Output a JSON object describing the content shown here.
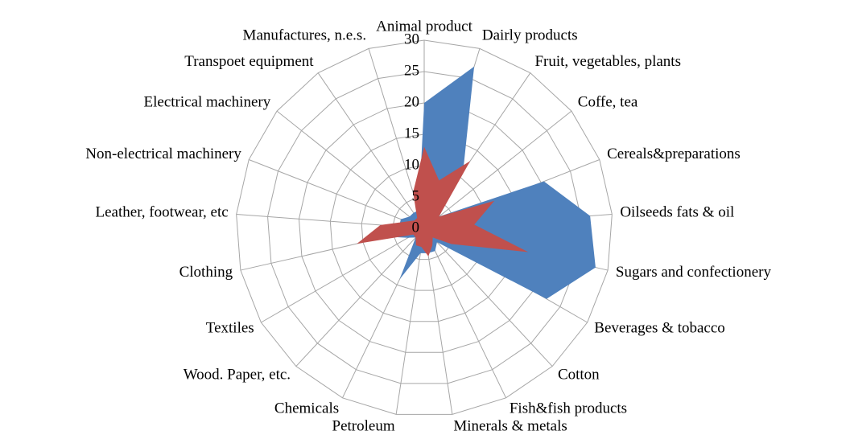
{
  "chart_data": {
    "type": "radar",
    "categories": [
      "Animal product",
      "Dairly products",
      "Fruit, vegetables, plants",
      "Coffe, tea",
      "Cereals&preparations",
      "Oilseeds fats & oil",
      "Sugars and confectionery",
      "Beverages & tobacco",
      "Cotton",
      "Fish&fish products",
      "Minerals & metals",
      "Petroleum",
      "Chemicals",
      "Wood. Paper, etc.",
      "Textiles",
      "Clothing",
      "Leather, footwear, etc",
      "Non-electrical machinery",
      "Electrical machinery",
      "Transpoet equipment",
      "Manufactures, n.e.s."
    ],
    "series": [
      {
        "color": "#4f81bd",
        "values": [
          20,
          27,
          11,
          3,
          20.5,
          26.5,
          28,
          22.5,
          3,
          4,
          4,
          4,
          9,
          2,
          3,
          6,
          4,
          4,
          3,
          3,
          3
        ]
      },
      {
        "color": "#c0504d",
        "values": [
          13,
          8,
          13,
          3,
          12,
          8,
          17,
          5,
          2,
          3,
          4.5,
          3,
          3,
          2,
          2,
          11,
          7,
          3,
          2,
          2,
          6
        ]
      }
    ],
    "ylim": [
      0,
      30
    ],
    "yticks": [
      0,
      5,
      10,
      15,
      20,
      25,
      30
    ],
    "grid": true
  }
}
